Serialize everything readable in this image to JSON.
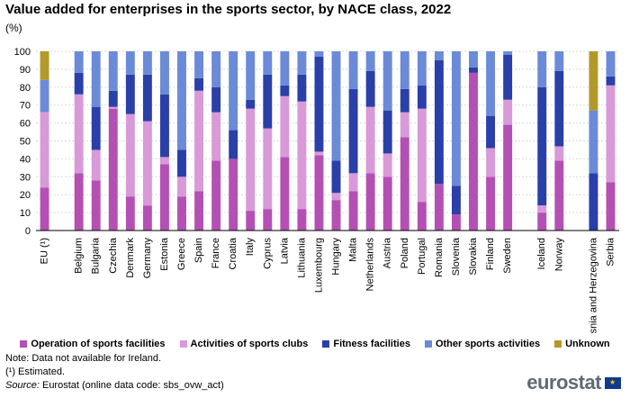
{
  "title": "Value added for enterprises in the sports sector, by NACE class, 2022",
  "unit": "(%)",
  "chart_data": {
    "type": "bar",
    "stacked": true,
    "ylim": [
      0,
      100
    ],
    "yticks": [
      0,
      10,
      20,
      30,
      40,
      50,
      60,
      70,
      80,
      90,
      100
    ],
    "categories": [
      "EU (¹)",
      "Belgium",
      "Bulgaria",
      "Czechia",
      "Denmark",
      "Germany",
      "Estonia",
      "Greece",
      "Spain",
      "France",
      "Croatia",
      "Italy",
      "Cyprus",
      "Latvia",
      "Lithuania",
      "Luxembourg",
      "Hungary",
      "Malta",
      "Netherlands",
      "Austria",
      "Poland",
      "Portugal",
      "Romania",
      "Slovenia",
      "Slovakia",
      "Finland",
      "Sweden",
      "Iceland",
      "Norway",
      "Bosnia and Herzegovina",
      "Serbia"
    ],
    "group_breaks_after": [
      "EU (¹)",
      "Sweden",
      "Norway"
    ],
    "series": [
      {
        "name": "Operation of sports facilities",
        "color": "#b450b4",
        "values": [
          24,
          32,
          28,
          68,
          19,
          14,
          37,
          19,
          22,
          39,
          40,
          11,
          12,
          41,
          12,
          42,
          17,
          22,
          32,
          30,
          52,
          16,
          26,
          9,
          88,
          30,
          59,
          10,
          39,
          0,
          27
        ]
      },
      {
        "name": "Activities of sports clubs",
        "color": "#d89ad8",
        "values": [
          42,
          44,
          17,
          1,
          46,
          47,
          4,
          11,
          56,
          27,
          0,
          57,
          45,
          34,
          60,
          2,
          4,
          10,
          37,
          13,
          14,
          52,
          0,
          0,
          0,
          16,
          14,
          4,
          8,
          0,
          54
        ]
      },
      {
        "name": "Fitness facilities",
        "color": "#2a3fa8",
        "values": [
          0,
          12,
          24,
          9,
          22,
          26,
          35,
          15,
          7,
          14,
          16,
          5,
          30,
          6,
          15,
          53,
          18,
          47,
          20,
          24,
          13,
          13,
          69,
          16,
          3,
          18,
          25,
          66,
          42,
          32,
          5
        ]
      },
      {
        "name": "Other sports activities",
        "color": "#6b8ad8",
        "values": [
          18,
          12,
          31,
          22,
          13,
          13,
          24,
          55,
          15,
          20,
          44,
          27,
          13,
          19,
          13,
          3,
          61,
          21,
          11,
          33,
          21,
          19,
          5,
          75,
          9,
          36,
          2,
          20,
          11,
          35,
          14
        ]
      },
      {
        "name": "Unknown",
        "color": "#b19a2a",
        "values": [
          16,
          0,
          0,
          0,
          0,
          0,
          0,
          0,
          0,
          0,
          0,
          0,
          0,
          0,
          0,
          0,
          0,
          0,
          0,
          0,
          0,
          0,
          0,
          0,
          0,
          0,
          0,
          0,
          0,
          33,
          0
        ]
      }
    ]
  },
  "notes": {
    "line1": "Note: Data not available for Ireland.",
    "line2": "(¹) Estimated.",
    "source_label": "Source:",
    "source_text": " Eurostat (online data code: sbs_ovw_act)"
  },
  "logo": {
    "text": "eurostat"
  }
}
